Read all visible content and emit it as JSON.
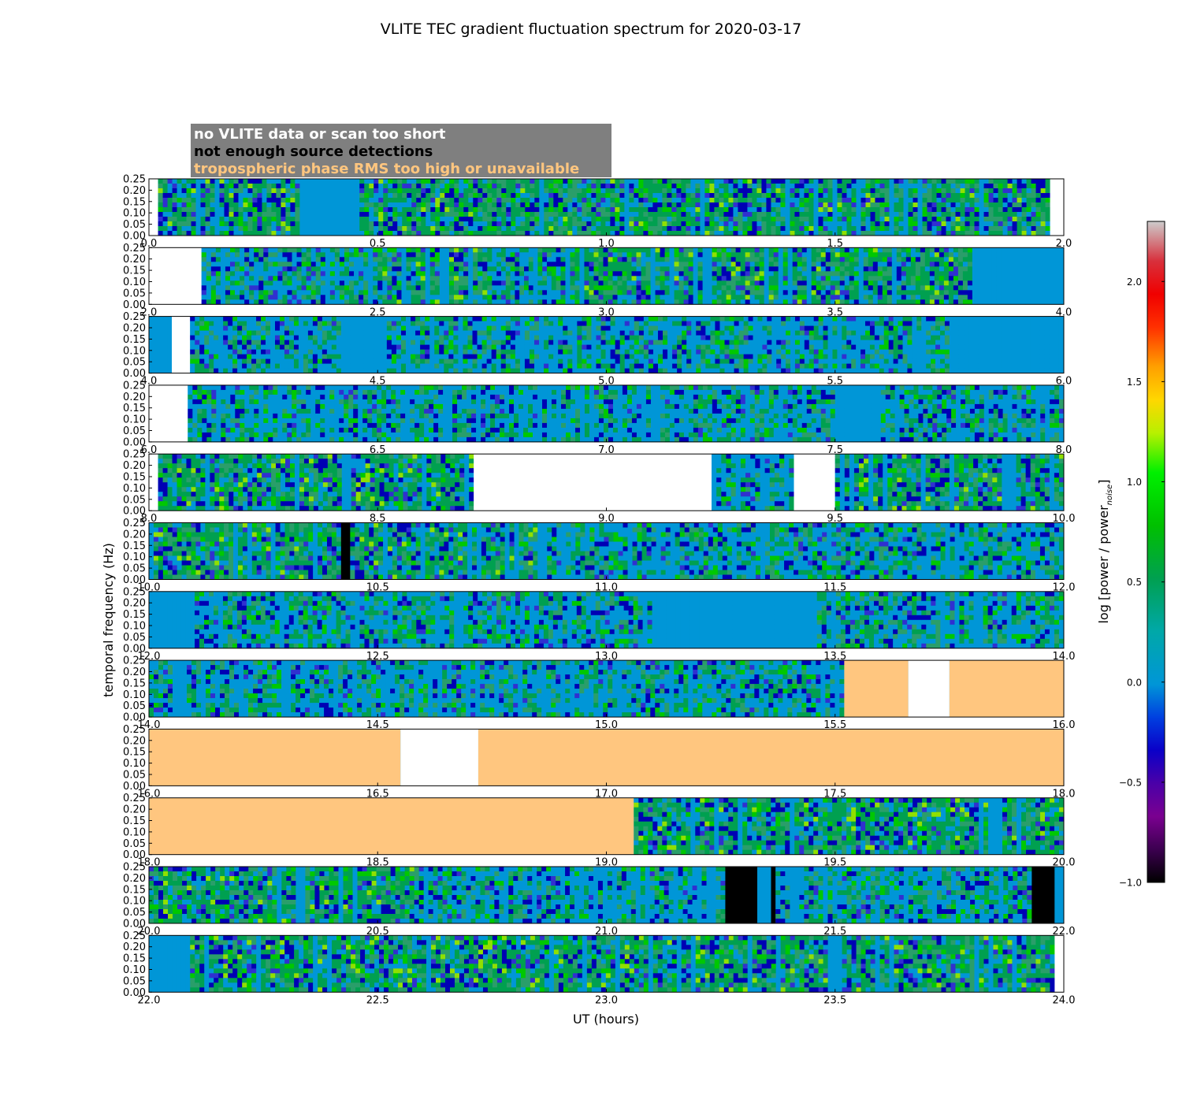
{
  "chart_data": {
    "type": "heatmap",
    "title": "VLITE TEC gradient fluctuation spectrum for 2020-03-17",
    "xlabel": "UT (hours)",
    "ylabel": "temporal frequency (Hz)",
    "ylim": [
      0,
      0.25
    ],
    "y_ticks": [
      "0.00",
      "0.05",
      "0.10",
      "0.15",
      "0.20",
      "0.25"
    ],
    "colorbar": {
      "label": "log [power / power",
      "label_sub": "noise",
      "label_end": "]",
      "range": [
        -1.0,
        2.3
      ],
      "ticks": [
        "−1.0",
        "−0.5",
        "0.0",
        "0.5",
        "1.0",
        "1.5",
        "2.0"
      ],
      "tick_values": [
        -1.0,
        -0.5,
        0.0,
        0.5,
        1.0,
        1.5,
        2.0
      ]
    },
    "legend": [
      {
        "label": "no VLITE data or scan too short",
        "text_color": "#ffffff",
        "category": "nodata"
      },
      {
        "label": "not enough source detections",
        "text_color": "#000000",
        "category": "nodetect"
      },
      {
        "label": "tropospheric phase RMS too high or unavailable",
        "text_color": "#ffc67f",
        "category": "tropo"
      }
    ],
    "category_colors": {
      "nodata": "#ffffff",
      "nodetect": "#000000",
      "tropo": "#ffc67f",
      "quiet": "#0096d7"
    },
    "panels": [
      {
        "xrange": [
          0,
          2
        ],
        "x_ticks": [
          "0.0",
          "0.5",
          "1.0",
          "1.5",
          "2.0"
        ],
        "segments": [
          [
            0,
            0.02,
            "nodata"
          ],
          [
            0.02,
            0.34,
            "active"
          ],
          [
            0.34,
            0.45,
            "quiet"
          ],
          [
            0.45,
            1.97,
            "active"
          ],
          [
            1.97,
            2.0,
            "nodata"
          ]
        ]
      },
      {
        "xrange": [
          2,
          4
        ],
        "x_ticks": [
          "2.0",
          "2.5",
          "3.0",
          "3.5",
          "4.0"
        ],
        "segments": [
          [
            2.0,
            2.115,
            "nodata"
          ],
          [
            2.115,
            2.5,
            "mixed"
          ],
          [
            2.5,
            2.75,
            "active"
          ],
          [
            2.75,
            2.9,
            "mixed"
          ],
          [
            2.9,
            3.8,
            "active"
          ],
          [
            3.8,
            4.0,
            "quiet"
          ]
        ]
      },
      {
        "xrange": [
          4,
          6
        ],
        "x_ticks": [
          "4.0",
          "4.5",
          "5.0",
          "5.5",
          "6.0"
        ],
        "segments": [
          [
            4.0,
            4.05,
            "quiet"
          ],
          [
            4.05,
            4.09,
            "nodata"
          ],
          [
            4.09,
            4.42,
            "mixed"
          ],
          [
            4.42,
            4.52,
            "quiet"
          ],
          [
            4.52,
            5.3,
            "mixed"
          ],
          [
            5.3,
            5.75,
            "mixed"
          ],
          [
            5.75,
            6.0,
            "quiet"
          ]
        ]
      },
      {
        "xrange": [
          6,
          8
        ],
        "x_ticks": [
          "6.0",
          "6.5",
          "7.0",
          "7.5",
          "8.0"
        ],
        "segments": [
          [
            6.0,
            6.085,
            "nodata"
          ],
          [
            6.085,
            7.5,
            "mixed"
          ],
          [
            7.5,
            7.6,
            "quiet"
          ],
          [
            7.6,
            8.0,
            "mixed"
          ]
        ]
      },
      {
        "xrange": [
          8,
          10
        ],
        "x_ticks": [
          "8.0",
          "8.5",
          "9.0",
          "9.5",
          "10.0"
        ],
        "segments": [
          [
            8.0,
            8.02,
            "nodata"
          ],
          [
            8.02,
            8.71,
            "active"
          ],
          [
            8.71,
            9.23,
            "nodata"
          ],
          [
            9.23,
            9.41,
            "mixed"
          ],
          [
            9.41,
            9.5,
            "nodata"
          ],
          [
            9.5,
            10.0,
            "active"
          ]
        ]
      },
      {
        "xrange": [
          10,
          12
        ],
        "x_ticks": [
          "10.0",
          "10.5",
          "11.0",
          "11.5",
          "12.0"
        ],
        "segments": [
          [
            10.0,
            10.42,
            "active"
          ],
          [
            10.42,
            10.44,
            "nodetect"
          ],
          [
            10.44,
            10.86,
            "active"
          ],
          [
            10.86,
            12.0,
            "mixed"
          ]
        ]
      },
      {
        "xrange": [
          12,
          14
        ],
        "x_ticks": [
          "12.0",
          "12.5",
          "13.0",
          "13.5",
          "14.0"
        ],
        "segments": [
          [
            12.0,
            12.1,
            "quiet"
          ],
          [
            12.1,
            13.1,
            "mixed"
          ],
          [
            13.1,
            13.45,
            "quiet"
          ],
          [
            13.45,
            14.0,
            "mixed"
          ]
        ]
      },
      {
        "xrange": [
          14,
          16
        ],
        "x_ticks": [
          "14.0",
          "14.5",
          "15.0",
          "15.5",
          "16.0"
        ],
        "segments": [
          [
            14.0,
            15.52,
            "mixed"
          ],
          [
            15.52,
            15.66,
            "tropo"
          ],
          [
            15.66,
            15.75,
            "nodata"
          ],
          [
            15.75,
            16.0,
            "tropo"
          ]
        ]
      },
      {
        "xrange": [
          16,
          18
        ],
        "x_ticks": [
          "16.0",
          "16.5",
          "17.0",
          "17.5",
          "18.0"
        ],
        "segments": [
          [
            16.0,
            16.55,
            "tropo"
          ],
          [
            16.55,
            16.72,
            "nodata"
          ],
          [
            16.72,
            18.0,
            "tropo"
          ]
        ]
      },
      {
        "xrange": [
          18,
          20
        ],
        "x_ticks": [
          "18.0",
          "18.5",
          "19.0",
          "19.5",
          "20.0"
        ],
        "segments": [
          [
            18.0,
            19.06,
            "tropo"
          ],
          [
            19.06,
            20.0,
            "active"
          ]
        ]
      },
      {
        "xrange": [
          20,
          22
        ],
        "x_ticks": [
          "20.0",
          "20.5",
          "21.0",
          "21.5",
          "22.0"
        ],
        "segments": [
          [
            20.0,
            20.58,
            "active"
          ],
          [
            20.58,
            21.26,
            "mixed"
          ],
          [
            21.26,
            21.33,
            "nodetect"
          ],
          [
            21.33,
            21.36,
            "quiet"
          ],
          [
            21.36,
            21.37,
            "nodetect"
          ],
          [
            21.37,
            21.93,
            "mixed"
          ],
          [
            21.93,
            21.98,
            "nodetect"
          ],
          [
            21.98,
            22.0,
            "quiet"
          ]
        ]
      },
      {
        "xrange": [
          22,
          24
        ],
        "x_ticks": [
          "22.0",
          "22.5",
          "23.0",
          "23.5",
          "24.0"
        ],
        "segments": [
          [
            22.0,
            22.09,
            "quiet"
          ],
          [
            22.09,
            23.98,
            "active"
          ],
          [
            23.98,
            24.0,
            "nodata"
          ]
        ]
      }
    ]
  }
}
